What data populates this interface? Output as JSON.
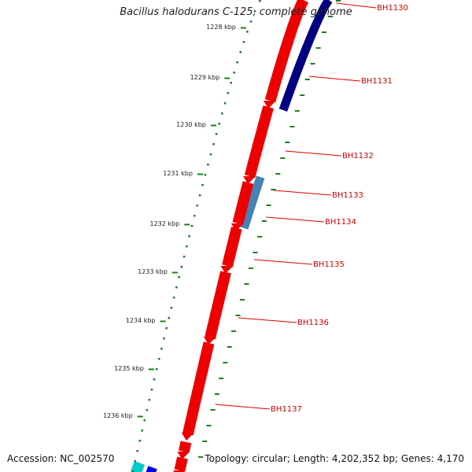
{
  "title": "Bacillus halodurans C-125, complete genome",
  "footer": {
    "accession": "Accession: NC_002570",
    "summary": "Topology: circular; Length: 4,202,352 bp; Genes: 4,170"
  },
  "scale": {
    "ticks": [
      "1228 kbp",
      "1229 kbp",
      "1230 kbp",
      "1231 kbp",
      "1232 kbp",
      "1233 kbp",
      "1234 kbp",
      "1235 kbp",
      "1236 kbp"
    ]
  },
  "genes": [
    {
      "name": "BH1130",
      "color": "#cc0000"
    },
    {
      "name": "BH1131",
      "color": "#cc0000"
    },
    {
      "name": "BH1132",
      "color": "#cc0000"
    },
    {
      "name": "BH1133",
      "color": "#cc0000"
    },
    {
      "name": "BH1134",
      "color": "#cc0000"
    },
    {
      "name": "BH1135",
      "color": "#cc0000"
    },
    {
      "name": "BH1136",
      "color": "#cc0000"
    },
    {
      "name": "BH1137",
      "color": "#cc0000"
    }
  ],
  "colors": {
    "backbone": "#808080",
    "cds_forward": "#ee0000",
    "feature_track": "#7b68d8",
    "feature_track_dark": "#000080",
    "feature_track_teal": "#4682b4",
    "ticks_dotted": "#1a7f1a",
    "gene_line": "#dd0000",
    "cyan_feature": "#00cccc",
    "blue_feature": "#0000ee"
  }
}
